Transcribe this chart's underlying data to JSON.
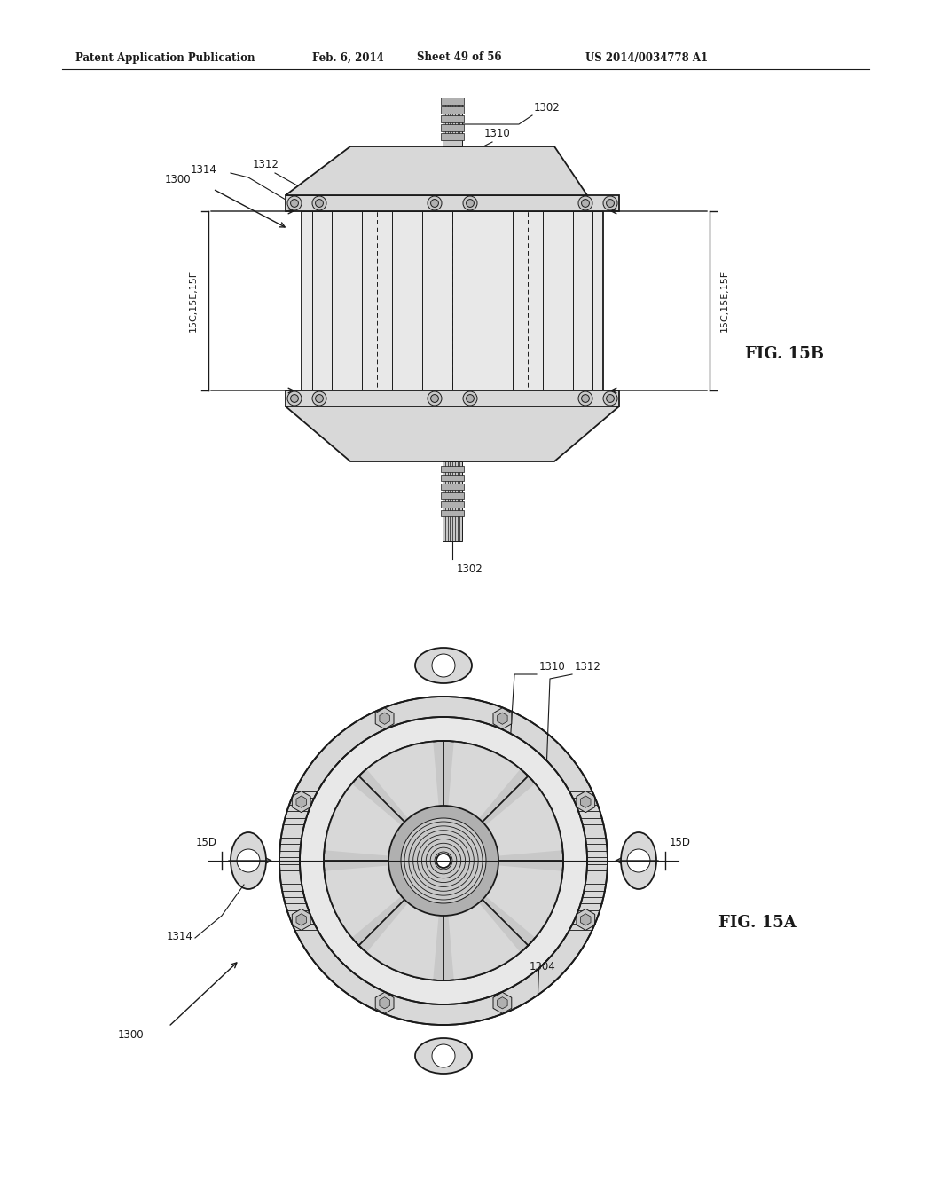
{
  "background_color": "#ffffff",
  "header_text": "Patent Application Publication",
  "header_date": "Feb. 6, 2014",
  "header_sheet": "Sheet 49 of 56",
  "header_patent": "US 2014/0034778 A1",
  "fig15b_label": "FIG. 15B",
  "fig15a_label": "FIG. 15A",
  "section_label_left": "15C,15E,15F",
  "section_label_right": "15C,15E,15F",
  "color_main": "#1a1a1a",
  "color_light": "#f5f5f5",
  "color_gray1": "#e8e8e8",
  "color_gray2": "#d8d8d8",
  "color_gray3": "#c8c8c8",
  "color_gray4": "#b0b0b0",
  "color_gray5": "#909090"
}
